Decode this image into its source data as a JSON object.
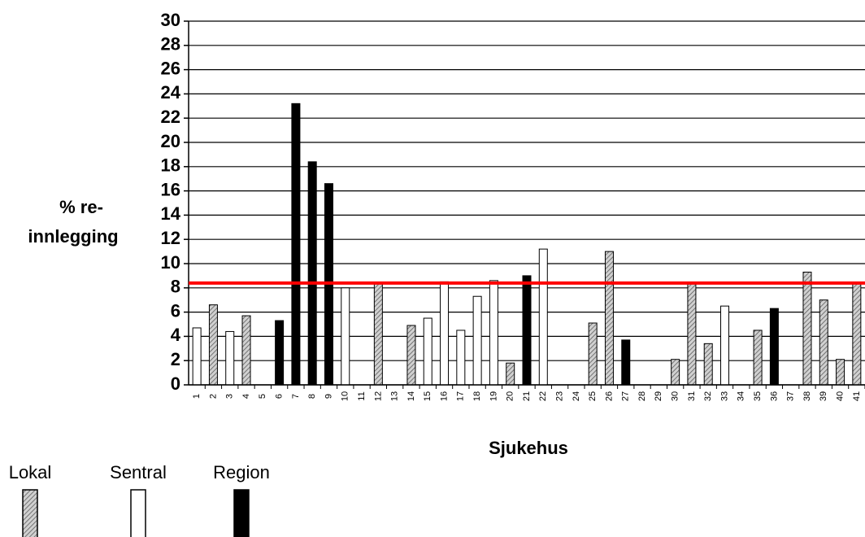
{
  "chart_data": {
    "type": "bar",
    "ylabel": [
      "% re-",
      "innlegging"
    ],
    "xlabel": "Sjukehus",
    "categories": [
      "1",
      "2",
      "3",
      "4",
      "5",
      "6",
      "7",
      "8",
      "9",
      "10",
      "11",
      "12",
      "13",
      "14",
      "15",
      "16",
      "17",
      "18",
      "19",
      "20",
      "21",
      "22",
      "23",
      "24",
      "25",
      "26",
      "27",
      "28",
      "29",
      "30",
      "31",
      "32",
      "33",
      "34",
      "35",
      "36",
      "37",
      "38",
      "39",
      "40",
      "41"
    ],
    "series": [
      {
        "name": "Lokal",
        "color": "#b8b8b8",
        "values": [
          null,
          6.6,
          null,
          5.7,
          null,
          null,
          null,
          null,
          null,
          null,
          null,
          8.4,
          null,
          4.9,
          null,
          null,
          null,
          null,
          null,
          1.8,
          null,
          null,
          null,
          null,
          5.1,
          11.0,
          null,
          null,
          null,
          2.1,
          8.4,
          3.4,
          null,
          null,
          4.5,
          null,
          null,
          9.3,
          7.0,
          2.1,
          8.4
        ]
      },
      {
        "name": "Sentral",
        "color": "#ffffff",
        "values": [
          4.7,
          null,
          4.4,
          null,
          null,
          null,
          null,
          null,
          null,
          8.0,
          null,
          null,
          null,
          null,
          5.5,
          8.5,
          4.5,
          7.3,
          8.6,
          null,
          null,
          11.2,
          null,
          null,
          null,
          null,
          null,
          null,
          null,
          null,
          null,
          null,
          6.5,
          null,
          null,
          null,
          null,
          null,
          null,
          null,
          null
        ]
      },
      {
        "name": "Region",
        "color": "#000000",
        "values": [
          null,
          null,
          null,
          null,
          null,
          5.3,
          23.2,
          18.4,
          16.6,
          null,
          null,
          null,
          null,
          null,
          null,
          null,
          null,
          null,
          null,
          null,
          9.0,
          null,
          null,
          null,
          null,
          null,
          3.7,
          null,
          null,
          null,
          null,
          null,
          null,
          null,
          null,
          6.3,
          null,
          null,
          null,
          null,
          null
        ]
      }
    ],
    "ylim": [
      0,
      30
    ],
    "yticks": [
      0,
      2,
      4,
      6,
      8,
      10,
      12,
      14,
      16,
      18,
      20,
      22,
      24,
      26,
      28,
      30
    ],
    "grid": true,
    "reference_line": {
      "value": 8.4,
      "color": "#ff0000"
    }
  }
}
